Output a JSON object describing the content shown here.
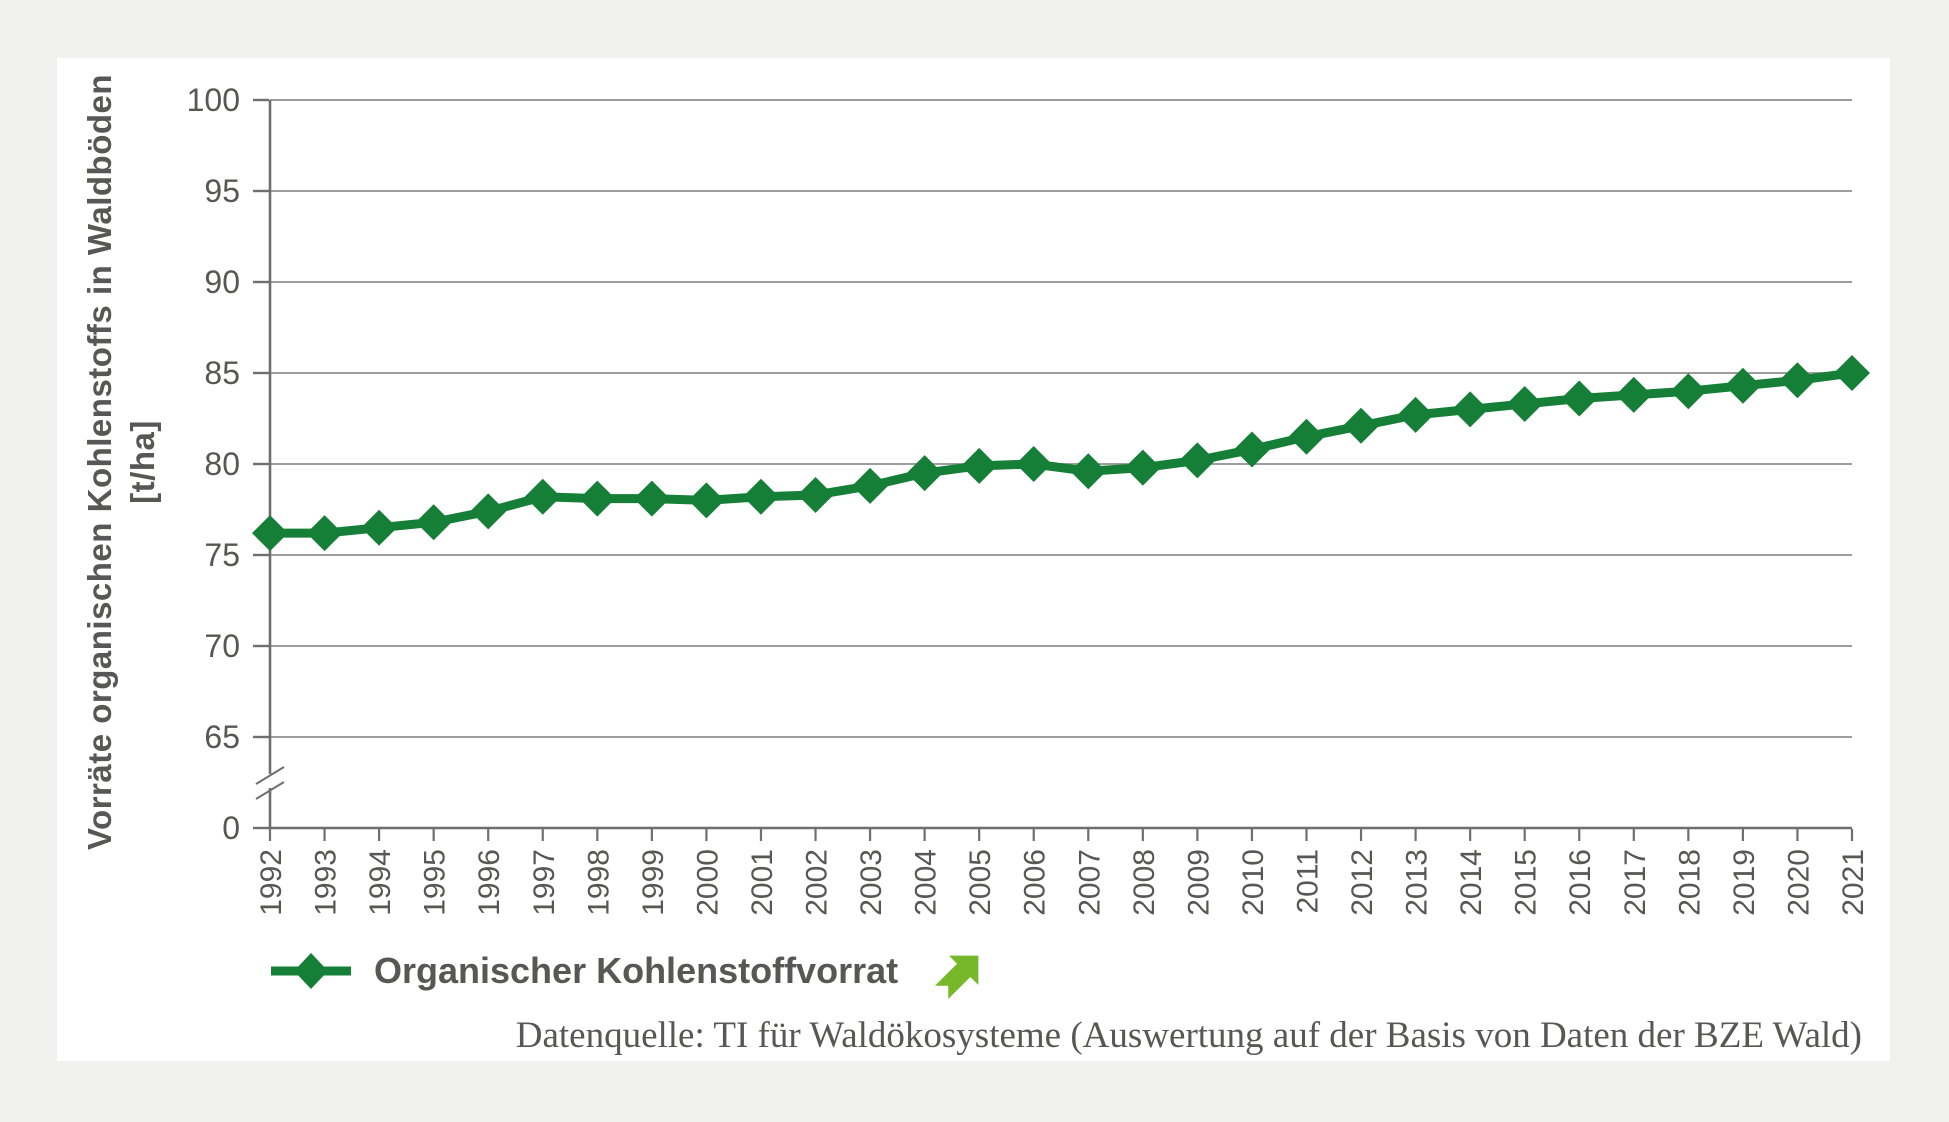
{
  "page": {
    "background_color": "#f1f1f0",
    "card_color": "#ffffff",
    "text_color": "#575756"
  },
  "chart_data": {
    "type": "line",
    "title": "",
    "ylabel_line1": "Vorräte organischen Kohlenstoffs in Waldböden",
    "ylabel_line2": "[t/ha]",
    "xlabel": "",
    "categories": [
      1992,
      1993,
      1994,
      1995,
      1996,
      1997,
      1998,
      1999,
      2000,
      2001,
      2002,
      2003,
      2004,
      2005,
      2006,
      2007,
      2008,
      2009,
      2010,
      2011,
      2012,
      2013,
      2014,
      2015,
      2016,
      2017,
      2018,
      2019,
      2020,
      2021
    ],
    "series": [
      {
        "name": "Organischer Kohlenstoffvorrat",
        "values": [
          76.2,
          76.2,
          76.5,
          76.8,
          77.4,
          78.2,
          78.1,
          78.1,
          78.0,
          78.2,
          78.3,
          78.8,
          79.5,
          79.9,
          80.0,
          79.6,
          79.8,
          80.2,
          80.8,
          81.5,
          82.1,
          82.7,
          83.0,
          83.3,
          83.6,
          83.8,
          84.0,
          84.3,
          84.6,
          85.0
        ]
      }
    ],
    "y_ticks": [
      0,
      65,
      70,
      75,
      80,
      85,
      90,
      95,
      100
    ],
    "y_axis_break": "between 0 and 65",
    "ylim": [
      65,
      100
    ],
    "grid": "horizontal",
    "legend_position": "bottom-left",
    "colors": {
      "line": "#157f38",
      "marker": "#157f38",
      "trend_arrow": "#76b82a",
      "grid": "#8f8f8e",
      "axis": "#706f6f",
      "tick_text": "#575756"
    }
  },
  "legend": {
    "label": "Organischer Kohlenstoffvorrat",
    "trend_icon": "arrow-up-right"
  },
  "source": {
    "text": "Datenquelle: TI für Waldökosysteme (Auswertung auf der Basis von Daten der BZE Wald)"
  }
}
